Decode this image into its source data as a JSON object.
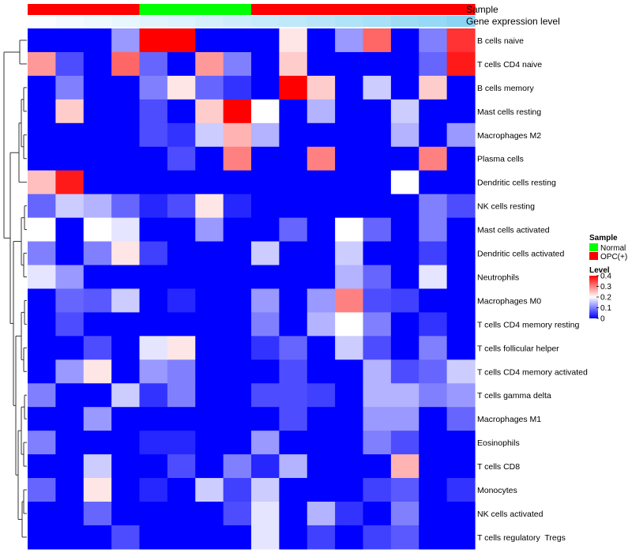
{
  "chart_data": {
    "type": "heatmap",
    "title": "",
    "rows": [
      "B cells naive",
      "T cells CD4 naive",
      "B cells memory",
      "Mast cells resting",
      "Macrophages M2",
      "Plasma cells",
      "Dendritic cells resting",
      "NK cells resting",
      "Mast cells activated",
      "Dendritic cells activated",
      "Neutrophils",
      "Macrophages M0",
      "T cells CD4 memory resting",
      "T cells follicular helper",
      "T cells CD4 memory activated",
      "T cells gamma delta",
      "Macrophages M1",
      "Eosinophils",
      "T cells CD8",
      "Monocytes",
      "NK cells activated",
      "T cells regulatory  Tregs"
    ],
    "values": [
      [
        0,
        0,
        0,
        0.12,
        0.4,
        0.4,
        0,
        0,
        0,
        0.22,
        0,
        0.12,
        0.32,
        0,
        0.1,
        0.36
      ],
      [
        0.28,
        0.06,
        0,
        0.32,
        0.08,
        0,
        0.28,
        0.1,
        0,
        0.24,
        0,
        0,
        0,
        0,
        0.08,
        0.38
      ],
      [
        0,
        0.1,
        0,
        0,
        0.1,
        0.22,
        0.08,
        0.04,
        0,
        0.4,
        0.24,
        0,
        0.16,
        0,
        0.24,
        0
      ],
      [
        0,
        0.24,
        0,
        0,
        0.06,
        0,
        0.24,
        0.4,
        0.2,
        0,
        0.14,
        0,
        0,
        0.16,
        0,
        0
      ],
      [
        0,
        0,
        0,
        0,
        0.06,
        0.04,
        0.16,
        0.26,
        0.14,
        0,
        0,
        0,
        0,
        0.14,
        0,
        0.12
      ],
      [
        0,
        0,
        0,
        0,
        0,
        0.06,
        0,
        0.3,
        0,
        0,
        0.3,
        0,
        0,
        0,
        0.3,
        0
      ],
      [
        0.25,
        0.38,
        0,
        0,
        0,
        0,
        0,
        0,
        0,
        0,
        0,
        0,
        0,
        0.2,
        0,
        0
      ],
      [
        0.08,
        0.16,
        0.14,
        0.08,
        0.03,
        0.06,
        0.22,
        0.03,
        0,
        0,
        0,
        0,
        0,
        0,
        0.1,
        0.06
      ],
      [
        0.2,
        0,
        0.2,
        0.18,
        0,
        0,
        0.12,
        0,
        0,
        0.08,
        0,
        0.2,
        0.08,
        0,
        0.1,
        0
      ],
      [
        0.1,
        0,
        0.1,
        0.22,
        0.05,
        0,
        0,
        0,
        0.16,
        0,
        0,
        0.16,
        0,
        0,
        0.05,
        0
      ],
      [
        0.18,
        0.12,
        0,
        0,
        0,
        0,
        0,
        0,
        0,
        0,
        0,
        0.14,
        0.08,
        0,
        0.18,
        0
      ],
      [
        0,
        0.08,
        0.07,
        0.16,
        0,
        0.03,
        0,
        0,
        0.12,
        0,
        0.12,
        0.3,
        0.06,
        0.05,
        0,
        0
      ],
      [
        0,
        0.06,
        0,
        0,
        0,
        0,
        0,
        0,
        0.1,
        0,
        0.14,
        0.2,
        0.1,
        0,
        0.04,
        0
      ],
      [
        0,
        0,
        0.06,
        0,
        0.18,
        0.22,
        0,
        0,
        0.04,
        0.08,
        0,
        0.16,
        0.06,
        0,
        0.1,
        0
      ],
      [
        0,
        0.12,
        0.22,
        0,
        0.12,
        0.1,
        0,
        0,
        0,
        0.06,
        0,
        0,
        0.14,
        0.06,
        0.08,
        0.16
      ],
      [
        0.1,
        0,
        0,
        0.16,
        0.04,
        0.1,
        0,
        0,
        0.06,
        0.06,
        0.05,
        0,
        0.14,
        0.14,
        0.1,
        0.12
      ],
      [
        0,
        0,
        0.12,
        0,
        0,
        0,
        0,
        0,
        0,
        0.06,
        0,
        0,
        0.12,
        0.12,
        0,
        0.08
      ],
      [
        0.1,
        0,
        0,
        0,
        0.03,
        0.03,
        0,
        0,
        0.12,
        0,
        0,
        0,
        0.1,
        0.06,
        0,
        0
      ],
      [
        0,
        0,
        0.16,
        0,
        0,
        0.06,
        0,
        0.1,
        0.03,
        0.14,
        0,
        0,
        0,
        0.26,
        0,
        0
      ],
      [
        0.08,
        0,
        0.22,
        0,
        0.03,
        0,
        0.16,
        0.05,
        0.16,
        0,
        0,
        0,
        0.05,
        0.07,
        0,
        0.04
      ],
      [
        0,
        0,
        0.08,
        0,
        0,
        0,
        0,
        0.06,
        0.18,
        0,
        0.14,
        0.04,
        0,
        0.1,
        0,
        0
      ],
      [
        0,
        0,
        0,
        0.06,
        0,
        0,
        0,
        0,
        0.18,
        0,
        0.05,
        0,
        0.05,
        0.07,
        0,
        0
      ]
    ],
    "sample_groups": [
      "OPC(+)",
      "OPC(+)",
      "OPC(+)",
      "OPC(+)",
      "Normal",
      "Normal",
      "Normal",
      "Normal",
      "OPC(+)",
      "OPC(+)",
      "OPC(+)",
      "OPC(+)",
      "OPC(+)",
      "OPC(+)",
      "OPC(+)",
      "OPC(+)"
    ],
    "gene_expression_level": [
      0.02,
      0.06,
      0.1,
      0.13,
      0.17,
      0.2,
      0.24,
      0.28,
      0.32,
      0.36,
      0.4,
      0.45,
      0.5,
      0.55,
      0.6,
      0.66
    ],
    "annotation_labels": {
      "sample": "Sample",
      "gene_expression": "Gene expression level"
    },
    "legend": {
      "sample": {
        "title": "Sample",
        "entries": [
          {
            "label": "Normal",
            "color": "#00ff00"
          },
          {
            "label": "OPC(+)",
            "color": "#ff0000"
          }
        ]
      },
      "level": {
        "title": "Level",
        "ticks": [
          0,
          0.1,
          0.2,
          0.3,
          0.4
        ],
        "tick_labels": [
          "0",
          "0.1",
          "0.2",
          "0.3",
          "0.4"
        ],
        "range": [
          0,
          0.4
        ]
      },
      "placement": "right"
    },
    "colors": {
      "low": "#0000ff",
      "mid": "#ffffff",
      "high": "#ff0000",
      "gene_expression_low": "#ffffff",
      "gene_expression_high": "#4ec0ee"
    },
    "row_dendrogram": true
  }
}
